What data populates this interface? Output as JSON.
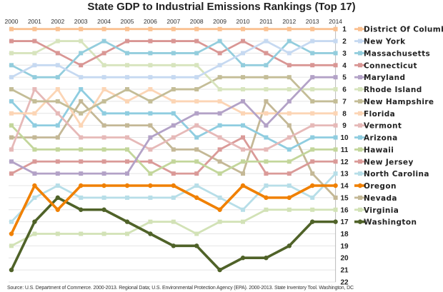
{
  "chart_data": {
    "type": "line",
    "title": "State GDP to Industrial Emissions Rankings (Top 17)",
    "x": [
      "2000",
      "2001",
      "2002",
      "2003",
      "2004",
      "2005",
      "2006",
      "2007",
      "2008",
      "2009",
      "2010",
      "2011",
      "2012",
      "2013",
      "2014"
    ],
    "y_ticks": [
      1,
      2,
      3,
      4,
      5,
      6,
      7,
      8,
      9,
      10,
      11,
      12,
      13,
      14,
      15,
      16,
      17,
      18,
      19,
      20,
      21,
      22
    ],
    "ylim": [
      1,
      22
    ],
    "y_inverted": true,
    "grid": true,
    "legend_placement": "right",
    "series": [
      {
        "name": "District Of Columbia",
        "color": "#fac090",
        "marker": "square",
        "values": [
          1,
          1,
          1,
          1,
          1,
          1,
          1,
          1,
          1,
          1,
          1,
          1,
          1,
          1,
          1
        ]
      },
      {
        "name": "New York",
        "color": "#c6d9f1",
        "marker": "square",
        "values": [
          5,
          4,
          4,
          5,
          5,
          5,
          5,
          5,
          5,
          4,
          3,
          2,
          3,
          2,
          2
        ]
      },
      {
        "name": "Massachusetts",
        "color": "#93cddd",
        "marker": "square",
        "values": [
          4,
          5,
          5,
          3,
          2,
          3,
          3,
          3,
          3,
          2,
          4,
          4,
          2,
          3,
          3
        ]
      },
      {
        "name": "Connecticut",
        "color": "#d99694",
        "marker": "square",
        "values": [
          2,
          2,
          3,
          4,
          3,
          2,
          2,
          2,
          2,
          3,
          2,
          3,
          4,
          4,
          4
        ]
      },
      {
        "name": "Maryland",
        "color": "#b3a2c7",
        "marker": "square",
        "values": [
          12,
          13,
          13,
          13,
          13,
          13,
          10,
          9,
          8,
          8,
          7,
          9,
          7,
          5,
          5
        ]
      },
      {
        "name": "Rhode Island",
        "color": "#d7e4bd",
        "marker": "square",
        "values": [
          3,
          3,
          2,
          2,
          4,
          4,
          4,
          4,
          4,
          6,
          6,
          6,
          6,
          6,
          6
        ]
      },
      {
        "name": "New Hampshire",
        "color": "#c4bd97",
        "marker": "square",
        "values": [
          6,
          7,
          7,
          8,
          7,
          6,
          7,
          6,
          6,
          5,
          5,
          5,
          5,
          7,
          7
        ]
      },
      {
        "name": "Florida",
        "color": "#fcd5b5",
        "marker": "square",
        "values": [
          8,
          8,
          6,
          9,
          6,
          7,
          6,
          7,
          7,
          7,
          8,
          8,
          8,
          8,
          8
        ]
      },
      {
        "name": "Vermont",
        "color": "#e6b9b8",
        "marker": "square",
        "values": [
          11,
          6,
          8,
          10,
          10,
          10,
          11,
          10,
          9,
          10,
          11,
          11,
          10,
          9,
          9
        ]
      },
      {
        "name": "Arizona",
        "color": "#8fcde0",
        "marker": "square",
        "values": [
          7,
          9,
          9,
          6,
          8,
          8,
          8,
          8,
          10,
          9,
          9,
          10,
          11,
          10,
          10
        ]
      },
      {
        "name": "Hawaii",
        "color": "#c3d69b",
        "marker": "square",
        "values": [
          9,
          11,
          11,
          11,
          11,
          11,
          13,
          12,
          12,
          13,
          12,
          12,
          12,
          11,
          11
        ]
      },
      {
        "name": "New Jersey",
        "color": "#da9a98",
        "marker": "square",
        "values": [
          13,
          12,
          12,
          12,
          12,
          12,
          12,
          13,
          13,
          11,
          10,
          13,
          13,
          12,
          12
        ]
      },
      {
        "name": "North Carolina",
        "color": "#b7dee8",
        "marker": "square",
        "values": [
          17,
          15,
          14,
          15,
          15,
          15,
          15,
          15,
          14,
          15,
          16,
          14,
          14,
          15,
          13
        ]
      },
      {
        "name": "Oregon",
        "color": "#f08000",
        "marker": "circle",
        "values": [
          18,
          14,
          16,
          14,
          14,
          14,
          14,
          14,
          15,
          16,
          14,
          15,
          15,
          14,
          14
        ]
      },
      {
        "name": "Nevada",
        "color": "#c4b896",
        "marker": "square",
        "values": [
          10,
          10,
          10,
          7,
          9,
          9,
          9,
          11,
          11,
          12,
          13,
          7,
          9,
          13,
          15
        ]
      },
      {
        "name": "Virginia",
        "color": "#d2e2b6",
        "marker": "square",
        "values": [
          19,
          18,
          18,
          18,
          18,
          18,
          17,
          17,
          18,
          17,
          17,
          16,
          16,
          16,
          16
        ]
      },
      {
        "name": "Washington",
        "color": "#4f6228",
        "marker": "circle",
        "values": [
          21,
          17,
          15,
          16,
          16,
          17,
          18,
          19,
          19,
          21,
          20,
          20,
          19,
          17,
          17
        ]
      }
    ],
    "source": "Source: U.S. Department of Commerce. 2000-2013. Regional Data; U.S. Environmental Protection Agency (EPA). 2000-2013. State Inventory Tool. Washington, DC"
  }
}
